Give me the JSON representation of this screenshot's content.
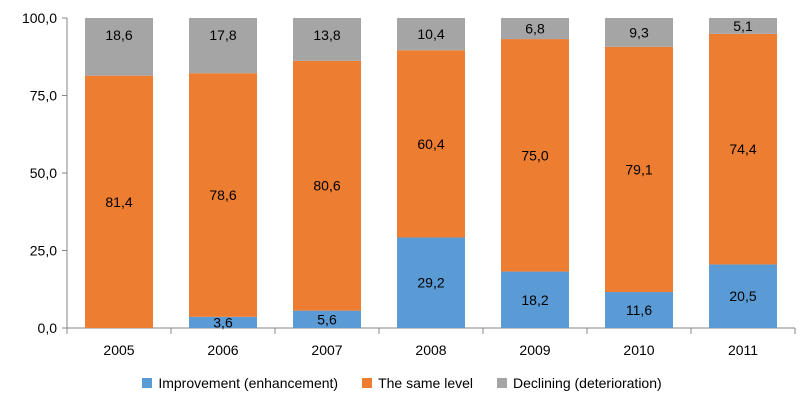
{
  "chart_data": {
    "type": "bar",
    "stacked": true,
    "categories": [
      "2005",
      "2006",
      "2007",
      "2008",
      "2009",
      "2010",
      "2011"
    ],
    "series": [
      {
        "name": "Improvement (enhancement)",
        "color": "#5b9bd5",
        "values": [
          0,
          3.6,
          5.6,
          29.2,
          18.2,
          11.6,
          20.5
        ],
        "labels": [
          "",
          "3,6",
          "5,6",
          "29,2",
          "18,2",
          "11,6",
          "20,5"
        ]
      },
      {
        "name": "The same level",
        "color": "#ed7d31",
        "values": [
          81.4,
          78.6,
          80.6,
          60.4,
          75.0,
          79.1,
          74.4
        ],
        "labels": [
          "81,4",
          "78,6",
          "80,6",
          "60,4",
          "75,0",
          "79,1",
          "74,4"
        ]
      },
      {
        "name": "Declining (deterioration)",
        "color": "#a5a5a5",
        "values": [
          18.6,
          17.8,
          13.8,
          10.4,
          6.8,
          9.3,
          5.1
        ],
        "labels": [
          "18,6",
          "17,8",
          "13,8",
          "10,4",
          "6,8",
          "9,3",
          "5,1"
        ]
      }
    ],
    "yticks": [
      "0,0",
      "25,0",
      "50,0",
      "75,0",
      "100,0"
    ],
    "ylim": [
      0,
      100
    ],
    "grid": false,
    "legend_position": "bottom"
  }
}
